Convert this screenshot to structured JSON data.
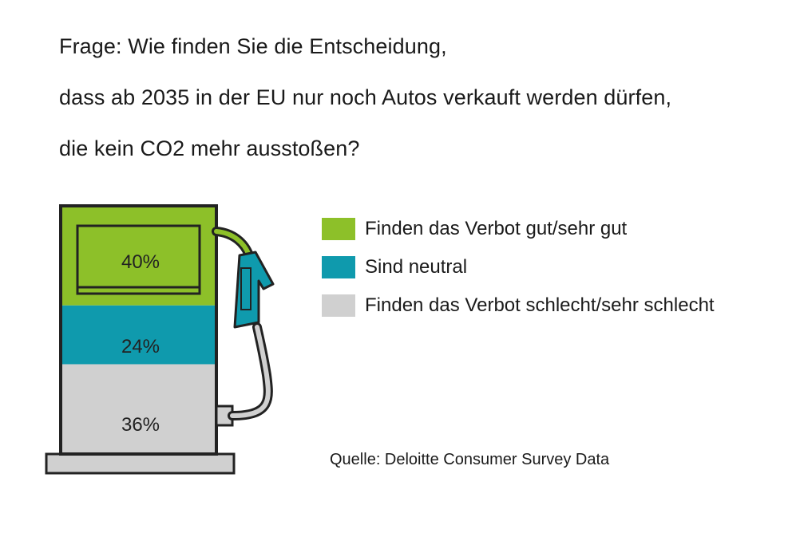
{
  "question": {
    "line1": "Frage: Wie finden Sie die Entscheidung,",
    "line2": "dass ab 2035 in der EU nur noch Autos verkauft werden dürfen,",
    "line3": "die kein CO2 mehr ausstoßen?"
  },
  "chart_data": {
    "type": "stacked-bar",
    "categories": [
      "Finden das Verbot gut/sehr gut",
      "Sind neutral",
      "Finden das Verbot schlecht/sehr schlecht"
    ],
    "values": [
      40,
      24,
      36
    ],
    "value_labels": [
      "40%",
      "24%",
      "36%"
    ],
    "unit": "%",
    "colors": [
      "#8dc029",
      "#0f9aad",
      "#d0d0d0"
    ],
    "legend_position": "right",
    "legend": [
      {
        "label": "Finden das Verbot gut/sehr gut",
        "color": "#8dc029"
      },
      {
        "label": "Sind neutral",
        "color": "#0f9aad"
      },
      {
        "label": "Finden das Verbot schlecht/sehr schlecht",
        "color": "#d0d0d0"
      }
    ]
  },
  "source": "Quelle: Deloitte Consumer Survey Data"
}
